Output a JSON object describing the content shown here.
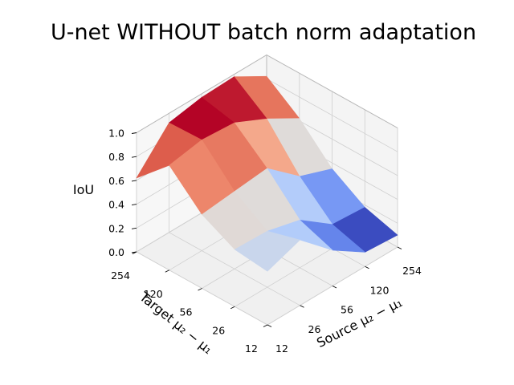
{
  "chart_data": {
    "type": "surface3d",
    "title": "U-net WITHOUT batch norm adaptation",
    "zlabel": "IoU",
    "zlim": [
      0.0,
      1.0
    ],
    "zticks": [
      "0.0",
      "0.2",
      "0.4",
      "0.6",
      "0.8",
      "1.0"
    ],
    "source_axis": {
      "label": "Source μ₂ − μ₁",
      "ticks": [
        "12",
        "26",
        "56",
        "120",
        "254"
      ]
    },
    "target_axis": {
      "label": "Target μ₂ − μ₁",
      "ticks": [
        "12",
        "26",
        "56",
        "120",
        "254"
      ]
    },
    "colormap": "coolwarm",
    "grid": true,
    "iou_grid_note": "rows = target tick index (12..254), cols = source tick index (12..254)",
    "iou": [
      [
        0.45,
        0.55,
        0.3,
        0.12,
        0.1
      ],
      [
        0.48,
        0.47,
        0.4,
        0.2,
        0.18
      ],
      [
        0.62,
        0.65,
        0.68,
        0.45,
        0.35
      ],
      [
        0.88,
        0.93,
        0.91,
        0.78,
        0.62
      ],
      [
        0.62,
        0.92,
        0.97,
        0.98,
        0.82
      ]
    ]
  }
}
